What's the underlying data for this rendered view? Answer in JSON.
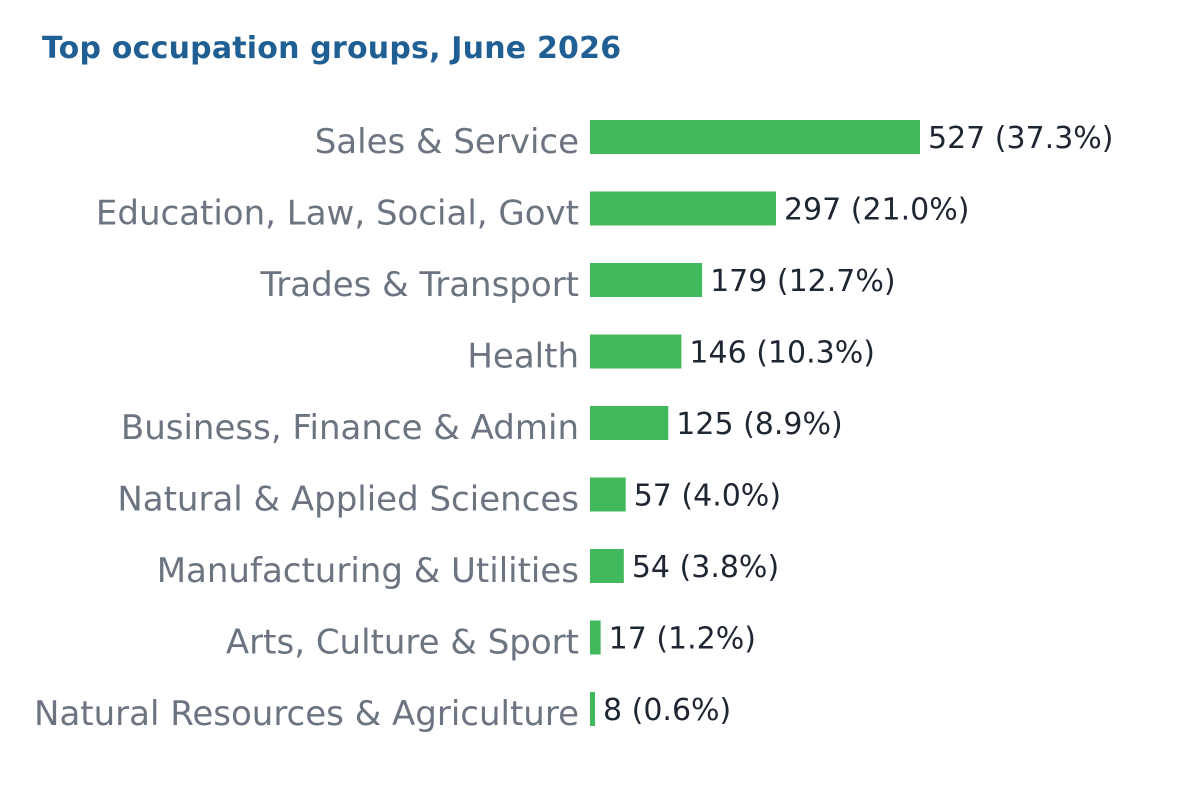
{
  "chart_data": {
    "type": "bar",
    "orientation": "horizontal",
    "title": "Top occupation groups, June 2026",
    "xlabel": "",
    "ylabel": "",
    "categories": [
      "Sales & Service",
      "Education, Law, Social, Govt",
      "Trades & Transport",
      "Health",
      "Business, Finance & Admin",
      "Natural & Applied Sciences",
      "Manufacturing & Utilities",
      "Arts, Culture & Sport",
      "Natural Resources & Agriculture"
    ],
    "values": [
      527,
      297,
      179,
      146,
      125,
      57,
      54,
      17,
      8
    ],
    "percent_labels": [
      "(37.3%)",
      "(21.0%)",
      "(12.7%)",
      "(10.3%)",
      "(8.9%)",
      "(4.0%)",
      "(3.8%)",
      "(1.2%)",
      "(0.6%)"
    ],
    "grid": false,
    "legend": "none",
    "colors": {
      "bar": "#42b85c",
      "title": "#1f5f93",
      "category_text": "#6b7480",
      "value_text": "#1f2633"
    }
  }
}
